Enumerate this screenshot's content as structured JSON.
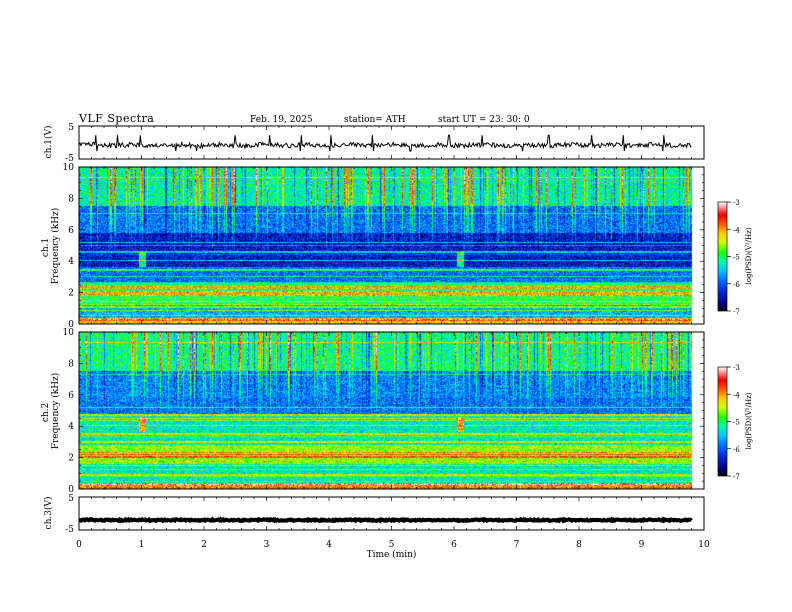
{
  "header": {
    "title": "VLF  Spectra",
    "date": "Feb. 19, 2025",
    "station": "station= ATH",
    "start": "start  UT  =    23: 30: 0"
  },
  "colors": {
    "background": "#ffffff",
    "axis": "#000000",
    "colormap": [
      "#000000",
      "#00007a",
      "#0022cc",
      "#0066ff",
      "#00c8ff",
      "#00ffaa",
      "#22ff00",
      "#cfff00",
      "#ffcc00",
      "#ff5500",
      "#ee0000",
      "#ffffff"
    ]
  },
  "chart_data": [
    {
      "type": "line",
      "name": "ch1-waveform",
      "ylabel": "ch.1(V)",
      "ylim": [
        -5,
        5
      ],
      "yticks": [
        "5",
        "-5"
      ],
      "xlim": [
        0,
        10
      ],
      "data_end_min": 9.8,
      "mean": -0.8,
      "noise_amplitude": 0.7,
      "spikes_min": [
        0.28,
        0.62,
        0.98,
        1.55,
        1.88,
        2.5,
        3.05,
        3.55,
        4.02,
        4.7,
        5.3,
        5.92,
        6.45,
        7.1,
        7.52,
        8.2,
        8.72,
        9.35
      ]
    },
    {
      "type": "heatmap",
      "name": "ch1-spectrogram",
      "ylabel": "ch.1\nFrequency (kHz)",
      "ylim": [
        0,
        10
      ],
      "yticks": [
        "0",
        "2",
        "4",
        "6",
        "8",
        "10"
      ],
      "xlim": [
        0,
        10
      ],
      "data_end_min": 9.8,
      "colorbar_label": "log(PSD)(V²/Hz)",
      "colorbar_range": [
        -7,
        -3
      ],
      "colorbar_ticks": [
        "-3",
        "-4",
        "-5",
        "-6",
        "-7"
      ],
      "base_level_by_band": [
        {
          "f": [
            0.0,
            0.4
          ],
          "level": -4.2
        },
        {
          "f": [
            0.4,
            1.2
          ],
          "level": -5.6
        },
        {
          "f": [
            1.2,
            2.6
          ],
          "level": -5.0
        },
        {
          "f": [
            2.6,
            3.6
          ],
          "level": -5.9
        },
        {
          "f": [
            3.6,
            5.8
          ],
          "level": -6.4
        },
        {
          "f": [
            5.8,
            7.5
          ],
          "level": -5.9
        },
        {
          "f": [
            7.5,
            10.0
          ],
          "level": -5.2
        }
      ],
      "tone_lines_khz": [
        0.3,
        0.55,
        0.85,
        1.1,
        1.85,
        2.05,
        2.25,
        2.4,
        3.45,
        4.05,
        4.6,
        5.2
      ],
      "sferic_density": 0.55,
      "event_marks_min": [
        1.0,
        6.1
      ]
    },
    {
      "type": "heatmap",
      "name": "ch2-spectrogram",
      "ylabel": "ch.2\nFrequency (kHz)",
      "ylim": [
        0,
        10
      ],
      "yticks": [
        "0",
        "2",
        "4",
        "6",
        "8",
        "10"
      ],
      "xlim": [
        0,
        10
      ],
      "data_end_min": 9.8,
      "colorbar_label": "log(PSD)(V²/Hz)",
      "colorbar_range": [
        -7,
        -3
      ],
      "colorbar_ticks": [
        "-3",
        "-4",
        "-5",
        "-6",
        "-7"
      ],
      "base_level_by_band": [
        {
          "f": [
            0.0,
            0.4
          ],
          "level": -4.0
        },
        {
          "f": [
            0.4,
            1.6
          ],
          "level": -5.3
        },
        {
          "f": [
            1.6,
            2.8
          ],
          "level": -4.6
        },
        {
          "f": [
            2.8,
            4.8
          ],
          "level": -5.3
        },
        {
          "f": [
            4.8,
            5.8
          ],
          "level": -5.9
        },
        {
          "f": [
            5.8,
            7.5
          ],
          "level": -5.8
        },
        {
          "f": [
            7.5,
            10.0
          ],
          "level": -5.1
        }
      ],
      "tone_lines_khz": [
        0.3,
        0.9,
        1.5,
        2.05,
        2.2,
        3.0,
        3.5,
        4.05,
        4.5,
        4.7,
        5.2
      ],
      "sferic_density": 0.55,
      "event_marks_min": [
        1.0,
        6.1
      ]
    },
    {
      "type": "line",
      "name": "ch3-waveform",
      "ylabel": "ch.3(V)",
      "ylim": [
        -5,
        5
      ],
      "yticks": [
        "5",
        "-5"
      ],
      "xlim": [
        0,
        10
      ],
      "data_end_min": 9.8,
      "mean": -2.0,
      "noise_amplitude": 0.2
    }
  ],
  "xaxis": {
    "label": "Time  (min)",
    "ticks": [
      "0",
      "1",
      "2",
      "3",
      "4",
      "5",
      "6",
      "7",
      "8",
      "9",
      "10"
    ]
  }
}
